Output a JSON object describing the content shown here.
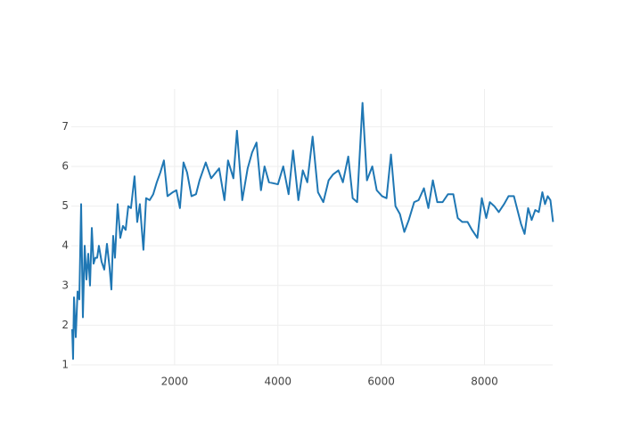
{
  "chart_data": {
    "type": "line",
    "color": "#1f77b4",
    "x": [
      17,
      34,
      52,
      86,
      121,
      155,
      190,
      224,
      259,
      293,
      328,
      362,
      397,
      431,
      465,
      500,
      534,
      586,
      638,
      690,
      741,
      776,
      810,
      845,
      897,
      948,
      1000,
      1052,
      1103,
      1155,
      1224,
      1276,
      1327,
      1396,
      1448,
      1517,
      1586,
      1655,
      1724,
      1793,
      1862,
      1965,
      2034,
      2103,
      2172,
      2241,
      2327,
      2414,
      2483,
      2603,
      2707,
      2862,
      2965,
      3034,
      3138,
      3207,
      3310,
      3414,
      3500,
      3586,
      3672,
      3741,
      3827,
      4000,
      4103,
      4207,
      4293,
      4396,
      4482,
      4569,
      4672,
      4776,
      4879,
      4982,
      5069,
      5172,
      5258,
      5362,
      5448,
      5534,
      5638,
      5724,
      5827,
      5913,
      6017,
      6103,
      6189,
      6276,
      6362,
      6448,
      6534,
      6638,
      6724,
      6827,
      6913,
      7000,
      7086,
      7189,
      7293,
      7396,
      7482,
      7569,
      7672,
      7758,
      7862,
      7948,
      8034,
      8103,
      8189,
      8276,
      8379,
      8465,
      8569,
      8707,
      8776,
      8845,
      8913,
      8982,
      9051,
      9120,
      9172,
      9224,
      9276,
      9327
    ],
    "values": [
      1.9,
      1.15,
      2.7,
      1.7,
      2.85,
      2.65,
      5.05,
      2.2,
      4.0,
      3.15,
      3.8,
      3.0,
      4.45,
      3.55,
      3.7,
      3.7,
      4.0,
      3.6,
      3.4,
      4.05,
      3.45,
      2.9,
      4.25,
      3.7,
      5.05,
      4.2,
      4.5,
      4.4,
      5.0,
      4.95,
      5.75,
      4.6,
      5.05,
      3.9,
      5.2,
      5.15,
      5.3,
      5.6,
      5.85,
      6.15,
      5.25,
      5.35,
      5.4,
      4.95,
      6.1,
      5.85,
      5.25,
      5.3,
      5.65,
      6.1,
      5.7,
      5.95,
      5.15,
      6.15,
      5.7,
      6.9,
      5.15,
      5.95,
      6.35,
      6.6,
      5.4,
      6.0,
      5.6,
      5.55,
      6.0,
      5.3,
      6.4,
      5.15,
      5.9,
      5.6,
      6.75,
      5.35,
      5.1,
      5.65,
      5.8,
      5.9,
      5.6,
      6.25,
      5.2,
      5.1,
      7.6,
      5.65,
      6.0,
      5.4,
      5.25,
      5.2,
      6.3,
      5.0,
      4.8,
      4.35,
      4.65,
      5.1,
      5.15,
      5.45,
      4.95,
      5.65,
      5.1,
      5.1,
      5.3,
      5.3,
      4.7,
      4.6,
      4.6,
      4.4,
      4.2,
      5.2,
      4.7,
      5.1,
      5.0,
      4.85,
      5.05,
      5.25,
      5.25,
      4.55,
      4.3,
      4.95,
      4.65,
      4.9,
      4.85,
      5.35,
      5.05,
      5.25,
      5.15,
      4.6
    ],
    "xlim": [
      0,
      9320
    ],
    "xticks": [
      2000,
      4000,
      6000,
      8000
    ],
    "ylim": [
      1,
      7.95
    ],
    "yticks": [
      1,
      2,
      3,
      4,
      5,
      6,
      7
    ],
    "grid": true
  }
}
